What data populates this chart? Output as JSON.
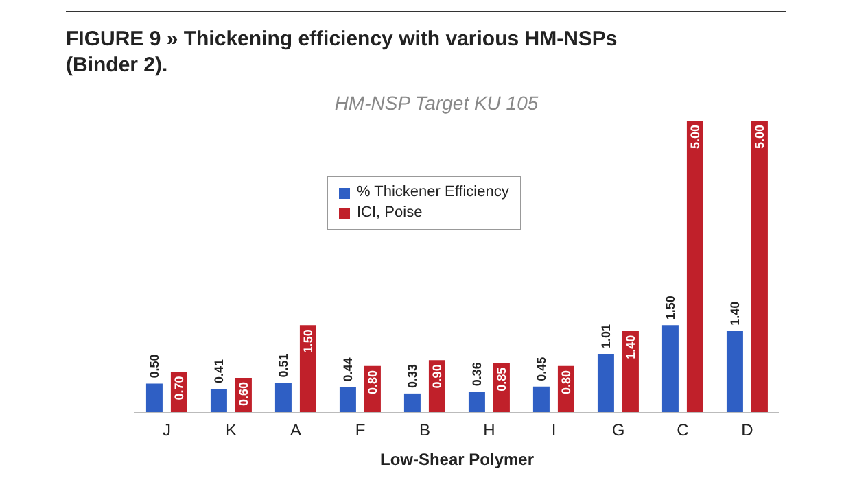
{
  "chart_data": {
    "type": "bar",
    "title": "FIGURE 9 » Thickening efficiency with various HM-NSPs (Binder 2).",
    "subtitle": "HM-NSP Target KU 105",
    "xlabel": "Low-Shear Polymer",
    "categories": [
      "J",
      "K",
      "A",
      "F",
      "B",
      "H",
      "I",
      "G",
      "C",
      "D"
    ],
    "series": [
      {
        "name": "% Thickener Efficiency",
        "color": "#2f5fc4",
        "values": [
          0.5,
          0.41,
          0.51,
          0.44,
          0.33,
          0.36,
          0.45,
          1.01,
          1.5,
          1.4
        ],
        "value_labels": [
          "0.50",
          "0.41",
          "0.51",
          "0.44",
          "0.33",
          "0.36",
          "0.45",
          "1.01",
          "1.50",
          "1.40"
        ]
      },
      {
        "name": "ICI, Poise",
        "color": "#c0202a",
        "values": [
          0.7,
          0.6,
          1.5,
          0.8,
          0.9,
          0.85,
          0.8,
          1.4,
          5.0,
          5.0
        ],
        "value_labels": [
          "0.70",
          "0.60",
          "1.50",
          "0.80",
          "0.90",
          "0.85",
          "0.80",
          "1.40",
          "5.00",
          "5.00"
        ]
      }
    ],
    "ylim": [
      0,
      5
    ],
    "tick_labels": "x",
    "legend": "top",
    "grid": false
  }
}
